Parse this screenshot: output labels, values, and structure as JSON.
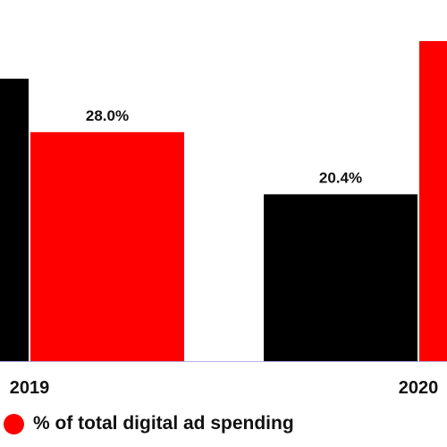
{
  "chart_data": {
    "type": "bar",
    "categories": [
      "2019",
      "2020"
    ],
    "series": [
      {
        "name": "",
        "color": "#000000",
        "values": [
          null,
          20.4
        ],
        "labels": [
          "",
          "20.4%"
        ]
      },
      {
        "name": "% of total digital ad spending",
        "color": "#ff0000",
        "values": [
          28.0,
          null
        ],
        "labels": [
          "28.0%",
          ""
        ]
      }
    ],
    "ylim": [
      0,
      35
    ],
    "axis_color": "#b3b3e6",
    "legend": {
      "placement": "bottom-left",
      "label": "% of total digital ad spending",
      "color": "#ff0000"
    }
  }
}
